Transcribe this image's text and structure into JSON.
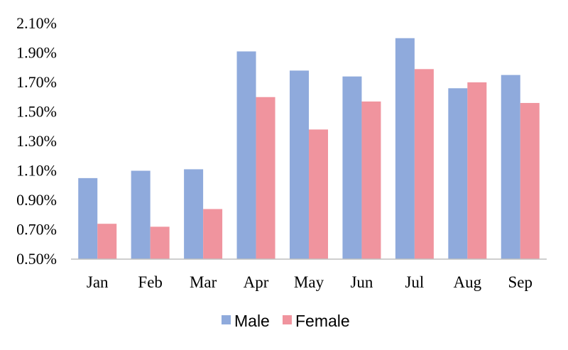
{
  "chart_data": {
    "type": "bar",
    "title": "",
    "xlabel": "",
    "ylabel": "",
    "categories": [
      "Jan",
      "Feb",
      "Mar",
      "Apr",
      "May",
      "Jun",
      "Jul",
      "Aug",
      "Sep"
    ],
    "series": [
      {
        "name": "Male",
        "color": "#8FAADC",
        "values": [
          1.05,
          1.1,
          1.11,
          1.91,
          1.78,
          1.74,
          2.0,
          1.66,
          1.75
        ]
      },
      {
        "name": "Female",
        "color": "#F0949E",
        "values": [
          0.74,
          0.72,
          0.84,
          1.6,
          1.38,
          1.57,
          1.79,
          1.7,
          1.56
        ]
      }
    ],
    "ylim": [
      0.5,
      2.1
    ],
    "yticks": [
      "0.50%",
      "0.70%",
      "0.90%",
      "1.10%",
      "1.30%",
      "1.50%",
      "1.70%",
      "1.90%",
      "2.10%"
    ],
    "ytick_values": [
      0.5,
      0.7,
      0.9,
      1.1,
      1.3,
      1.5,
      1.7,
      1.9,
      2.1
    ],
    "grid": false,
    "legend_position": "bottom"
  }
}
